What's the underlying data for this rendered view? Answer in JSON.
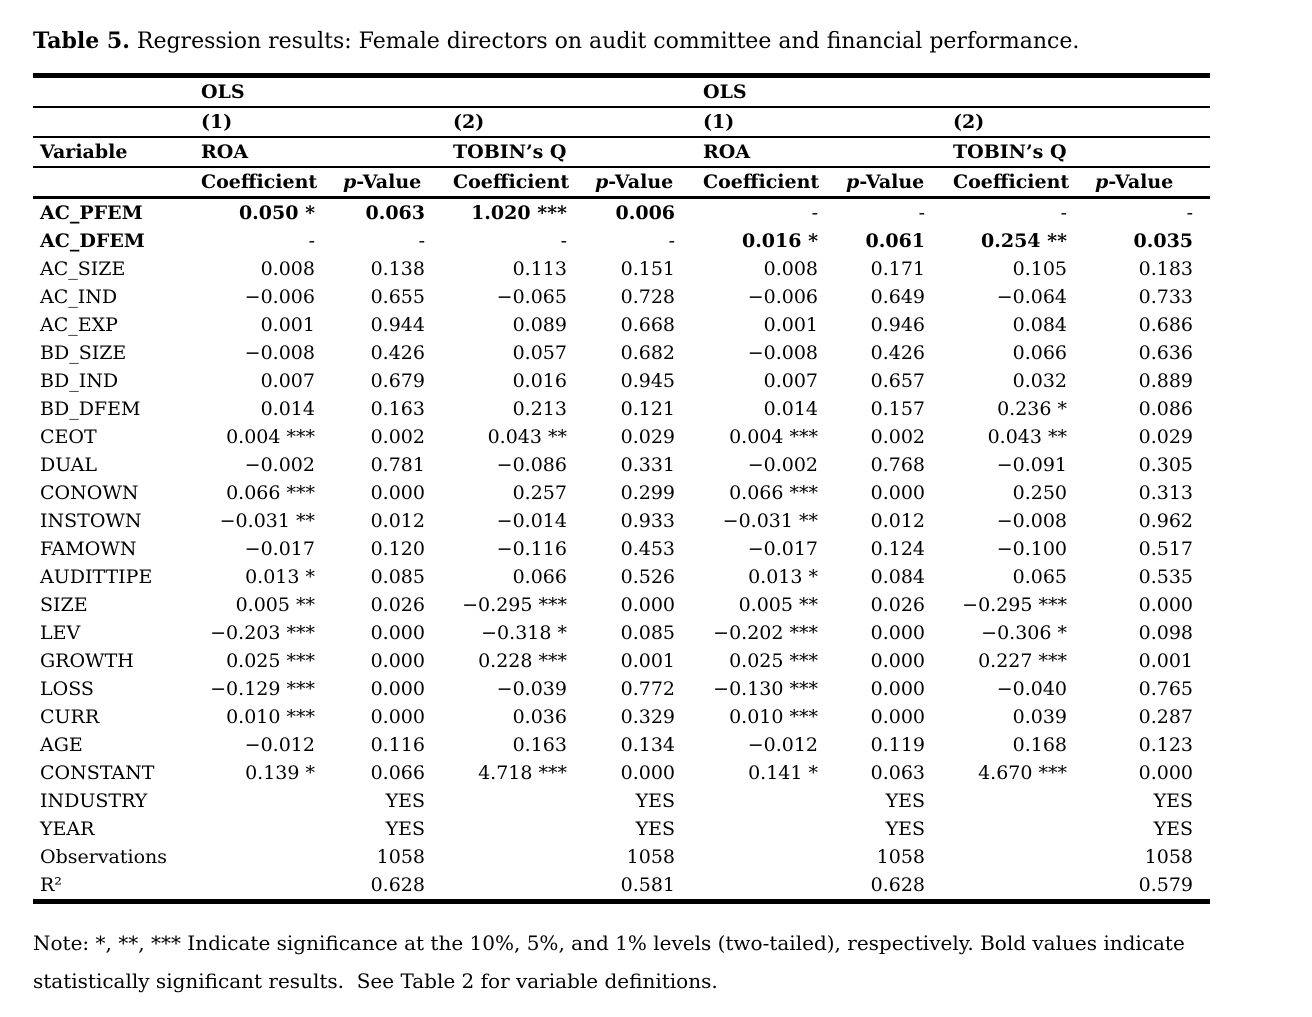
{
  "colors": {
    "text": "#000000",
    "background": "#ffffff"
  },
  "title": {
    "prefix": "Table 5.",
    "caption": "Regression results: Female directors on audit committee and financial performance."
  },
  "table": {
    "header": {
      "method_label": "OLS",
      "variable_label": "Variable",
      "models": [
        {
          "number": "(1)",
          "dv": "ROA"
        },
        {
          "number": "(2)",
          "dv": "TOBIN’s Q"
        },
        {
          "number": "(1)",
          "dv": "ROA"
        },
        {
          "number": "(2)",
          "dv": "TOBIN’s Q"
        }
      ],
      "coef_label": "Coefficient",
      "pval_italic": "p",
      "pval_rest": "-Value"
    },
    "rows": [
      {
        "label": "AC_PFEM",
        "bold": true,
        "values": [
          "0.050 *",
          "0.063",
          "1.020 ***",
          "0.006",
          "-",
          "-",
          "-",
          "-"
        ]
      },
      {
        "label": "AC_DFEM",
        "bold": true,
        "values": [
          "-",
          "-",
          "-",
          "-",
          "0.016 *",
          "0.061",
          "0.254 **",
          "0.035"
        ]
      },
      {
        "label": "AC_SIZE",
        "bold": false,
        "values": [
          "0.008",
          "0.138",
          "0.113",
          "0.151",
          "0.008",
          "0.171",
          "0.105",
          "0.183"
        ]
      },
      {
        "label": "AC_IND",
        "bold": false,
        "values": [
          "−0.006",
          "0.655",
          "−0.065",
          "0.728",
          "−0.006",
          "0.649",
          "−0.064",
          "0.733"
        ]
      },
      {
        "label": "AC_EXP",
        "bold": false,
        "values": [
          "0.001",
          "0.944",
          "0.089",
          "0.668",
          "0.001",
          "0.946",
          "0.084",
          "0.686"
        ]
      },
      {
        "label": "BD_SIZE",
        "bold": false,
        "values": [
          "−0.008",
          "0.426",
          "0.057",
          "0.682",
          "−0.008",
          "0.426",
          "0.066",
          "0.636"
        ]
      },
      {
        "label": "BD_IND",
        "bold": false,
        "values": [
          "0.007",
          "0.679",
          "0.016",
          "0.945",
          "0.007",
          "0.657",
          "0.032",
          "0.889"
        ]
      },
      {
        "label": "BD_DFEM",
        "bold": false,
        "values": [
          "0.014",
          "0.163",
          "0.213",
          "0.121",
          "0.014",
          "0.157",
          "0.236 *",
          "0.086"
        ]
      },
      {
        "label": "CEOT",
        "bold": false,
        "values": [
          "0.004 ***",
          "0.002",
          "0.043 **",
          "0.029",
          "0.004 ***",
          "0.002",
          "0.043 **",
          "0.029"
        ]
      },
      {
        "label": "DUAL",
        "bold": false,
        "values": [
          "−0.002",
          "0.781",
          "−0.086",
          "0.331",
          "−0.002",
          "0.768",
          "−0.091",
          "0.305"
        ]
      },
      {
        "label": "CONOWN",
        "bold": false,
        "values": [
          "0.066 ***",
          "0.000",
          "0.257",
          "0.299",
          "0.066 ***",
          "0.000",
          "0.250",
          "0.313"
        ]
      },
      {
        "label": "INSTOWN",
        "bold": false,
        "values": [
          "−0.031 **",
          "0.012",
          "−0.014",
          "0.933",
          "−0.031 **",
          "0.012",
          "−0.008",
          "0.962"
        ]
      },
      {
        "label": "FAMOWN",
        "bold": false,
        "values": [
          "−0.017",
          "0.120",
          "−0.116",
          "0.453",
          "−0.017",
          "0.124",
          "−0.100",
          "0.517"
        ]
      },
      {
        "label": "AUDITTIPE",
        "bold": false,
        "values": [
          "0.013 *",
          "0.085",
          "0.066",
          "0.526",
          "0.013 *",
          "0.084",
          "0.065",
          "0.535"
        ]
      },
      {
        "label": "SIZE",
        "bold": false,
        "values": [
          "0.005 **",
          "0.026",
          "−0.295 ***",
          "0.000",
          "0.005 **",
          "0.026",
          "−0.295 ***",
          "0.000"
        ]
      },
      {
        "label": "LEV",
        "bold": false,
        "values": [
          "−0.203 ***",
          "0.000",
          "−0.318 *",
          "0.085",
          "−0.202 ***",
          "0.000",
          "−0.306 *",
          "0.098"
        ]
      },
      {
        "label": "GROWTH",
        "bold": false,
        "values": [
          "0.025 ***",
          "0.000",
          "0.228 ***",
          "0.001",
          "0.025 ***",
          "0.000",
          "0.227 ***",
          "0.001"
        ]
      },
      {
        "label": "LOSS",
        "bold": false,
        "values": [
          "−0.129 ***",
          "0.000",
          "−0.039",
          "0.772",
          "−0.130 ***",
          "0.000",
          "−0.040",
          "0.765"
        ]
      },
      {
        "label": "CURR",
        "bold": false,
        "values": [
          "0.010 ***",
          "0.000",
          "0.036",
          "0.329",
          "0.010 ***",
          "0.000",
          "0.039",
          "0.287"
        ]
      },
      {
        "label": "AGE",
        "bold": false,
        "values": [
          "−0.012",
          "0.116",
          "0.163",
          "0.134",
          "−0.012",
          "0.119",
          "0.168",
          "0.123"
        ]
      },
      {
        "label": "CONSTANT",
        "bold": false,
        "values": [
          "0.139 *",
          "0.066",
          "4.718 ***",
          "0.000",
          "0.141 *",
          "0.063",
          "4.670 ***",
          "0.000"
        ]
      },
      {
        "label": "INDUSTRY",
        "bold": false,
        "values": [
          "",
          "YES",
          "",
          "YES",
          "",
          "YES",
          "",
          "YES"
        ]
      },
      {
        "label": "YEAR",
        "bold": false,
        "values": [
          "",
          "YES",
          "",
          "YES",
          "",
          "YES",
          "",
          "YES"
        ]
      },
      {
        "label": "Observations",
        "bold": false,
        "values": [
          "",
          "1058",
          "",
          "1058",
          "",
          "1058",
          "",
          "1058"
        ]
      },
      {
        "label": "R²",
        "bold": false,
        "values": [
          "",
          "0.628",
          "",
          "0.581",
          "",
          "0.628",
          "",
          "0.579"
        ]
      }
    ]
  },
  "note": {
    "line1": "Note: *, **, *** Indicate significance at the 10%, 5%, and 1% levels (two-tailed), respectively. Bold values indicate",
    "line2": "statistically significant results.  See Table 2 for variable definitions."
  }
}
